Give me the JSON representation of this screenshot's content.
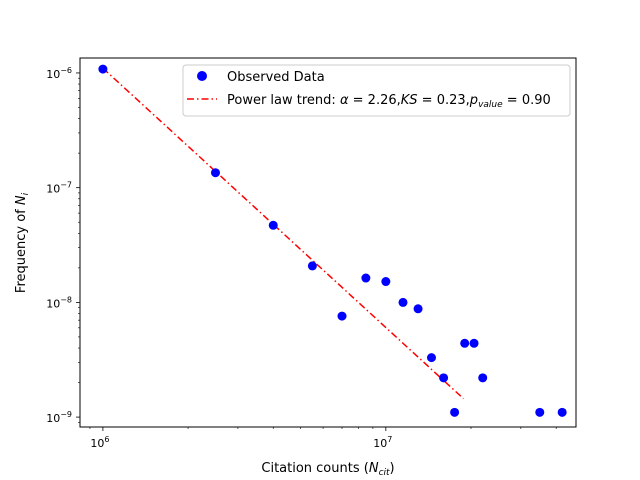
{
  "chart_data": {
    "type": "scatter",
    "x_scale": "log",
    "y_scale": "log",
    "xlim": [
      830000,
      47000000
    ],
    "ylim": [
      8.2e-10,
      1.35e-06
    ],
    "xlabel_main": "Citation counts (",
    "xlabel_var": "N",
    "xlabel_sub": "cit",
    "xlabel_end": ")",
    "ylabel_main": "Frequency of ",
    "ylabel_var": "N",
    "ylabel_sub": "i",
    "x_ticks": [
      {
        "value": 1000000,
        "base": "10",
        "exp": "6"
      },
      {
        "value": 10000000,
        "base": "10",
        "exp": "7"
      }
    ],
    "y_ticks": [
      {
        "value": 1e-06,
        "base": "10",
        "exp": "−6"
      },
      {
        "value": 1e-07,
        "base": "10",
        "exp": "−7"
      },
      {
        "value": 1e-08,
        "base": "10",
        "exp": "−8"
      },
      {
        "value": 1e-09,
        "base": "10",
        "exp": "−9"
      }
    ],
    "grid": false,
    "legend_position": "top-right",
    "series": [
      {
        "name": "Observed Data",
        "kind": "points",
        "color": "#0000ff",
        "points": [
          {
            "x": 1000000,
            "y": 1.08e-06
          },
          {
            "x": 2500000,
            "y": 1.35e-07
          },
          {
            "x": 4000000,
            "y": 4.7e-08
          },
          {
            "x": 5500000,
            "y": 2.08e-08
          },
          {
            "x": 7000000,
            "y": 7.6e-09
          },
          {
            "x": 8500000,
            "y": 1.63e-08
          },
          {
            "x": 10000000,
            "y": 1.52e-08
          },
          {
            "x": 11500000,
            "y": 1e-08
          },
          {
            "x": 13000000,
            "y": 8.8e-09
          },
          {
            "x": 14500000,
            "y": 3.3e-09
          },
          {
            "x": 16000000,
            "y": 2.2e-09
          },
          {
            "x": 17500000,
            "y": 1.1e-09
          },
          {
            "x": 19000000,
            "y": 4.4e-09
          },
          {
            "x": 20500000,
            "y": 4.4e-09
          },
          {
            "x": 22000000,
            "y": 2.2e-09
          },
          {
            "x": 35000000,
            "y": 1.1e-09
          },
          {
            "x": 42000000,
            "y": 1.1e-09
          }
        ]
      },
      {
        "kind": "line",
        "color": "#ff0000",
        "label_prefix": "Power law trend: ",
        "label_alpha_sym": "α",
        "label_alpha": " = 2.26,",
        "label_ks": "KS",
        "label_ks_val": " = 0.23,",
        "label_p": "p",
        "label_p_sub": "value",
        "label_p_val": " = 0.90",
        "points": [
          {
            "x": 1000000,
            "y": 1.1e-06
          },
          {
            "x": 18800000,
            "y": 1.45e-09
          }
        ]
      }
    ]
  }
}
